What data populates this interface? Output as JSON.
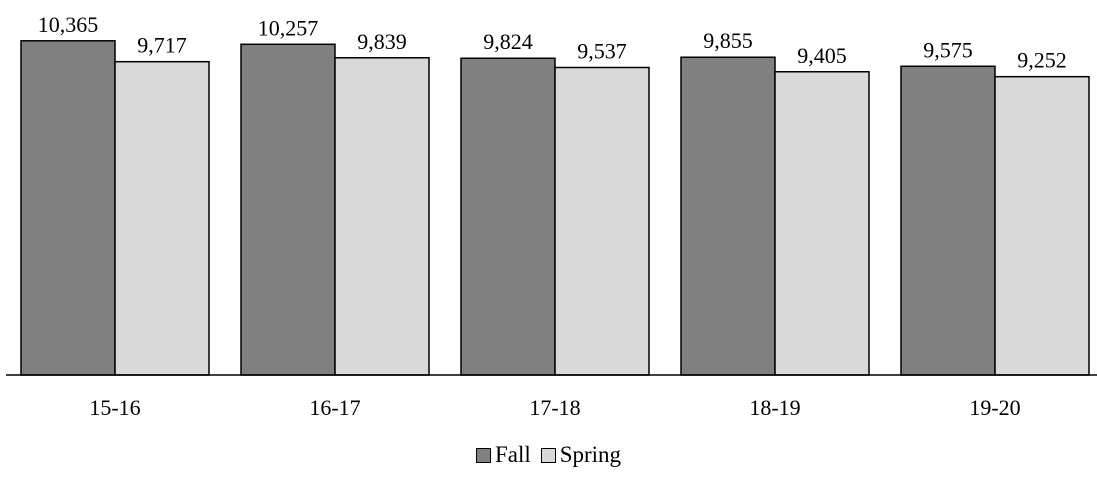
{
  "chart_data": {
    "type": "bar",
    "title": "",
    "xlabel": "",
    "ylabel": "",
    "categories": [
      "15-16",
      "16-17",
      "17-18",
      "18-19",
      "19-20"
    ],
    "series": [
      {
        "name": "Fall",
        "values": [
          10365,
          10257,
          9824,
          9855,
          9575
        ],
        "labels": [
          "10,365",
          "10,257",
          "9,824",
          "9,855",
          "9,575"
        ],
        "color": "#808080"
      },
      {
        "name": "Spring",
        "values": [
          9717,
          9839,
          9537,
          9405,
          9252
        ],
        "labels": [
          "9,717",
          "9,839",
          "9,537",
          "9,405",
          "9,252"
        ],
        "color": "#d9d9d9"
      }
    ],
    "ylim": [
      0,
      10700
    ],
    "grid": false,
    "legend_position": "bottom"
  }
}
